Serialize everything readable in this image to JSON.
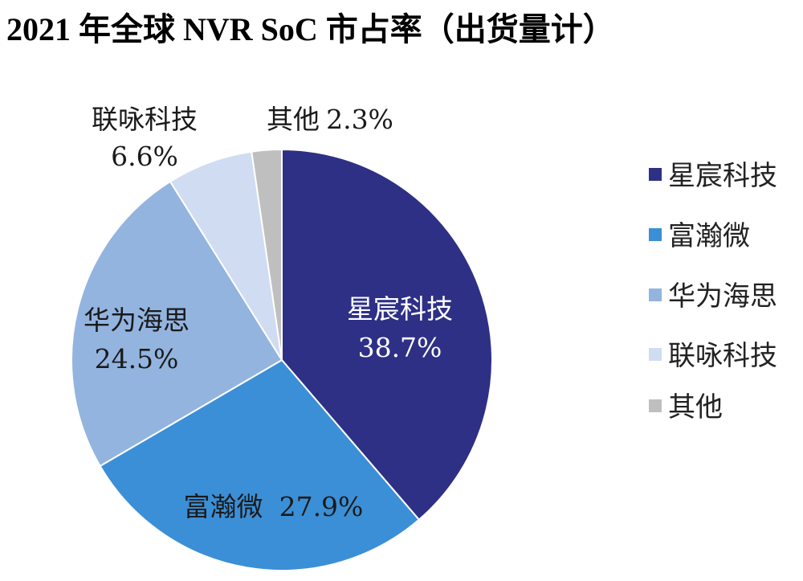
{
  "chart_data": {
    "type": "pie",
    "title": "2021 年全球 NVR SoC 市占率（出货量计）",
    "categories": [
      "星宸科技",
      "富瀚微",
      "华为海思",
      "联咏科技",
      "其他"
    ],
    "values": [
      38.7,
      27.9,
      24.5,
      6.6,
      2.3
    ],
    "unit": "%",
    "data_labels": [
      "38.7%",
      "27.9%",
      "24.5%",
      "6.6%",
      "2.3%"
    ],
    "colors": [
      "#2e3085",
      "#3b8fd6",
      "#93b4df",
      "#cfdcf2",
      "#bfbfbf"
    ],
    "legend": {
      "position": "right",
      "entries": [
        "星宸科技",
        "富瀚微",
        "华为海思",
        "联咏科技",
        "其他"
      ]
    }
  }
}
